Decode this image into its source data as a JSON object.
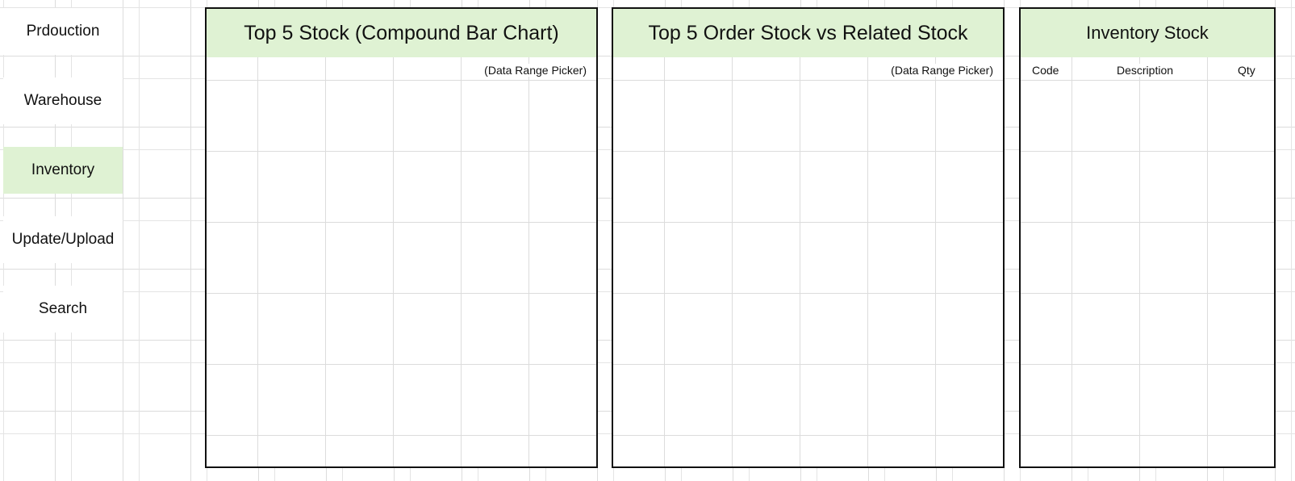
{
  "nav": {
    "items": [
      {
        "label": "Prdouction",
        "active": false
      },
      {
        "label": "Warehouse",
        "active": false
      },
      {
        "label": "Inventory",
        "active": true
      },
      {
        "label": "Update/Upload",
        "active": false
      },
      {
        "label": "Search",
        "active": false
      }
    ]
  },
  "panels": {
    "top_stock": {
      "title": "Top 5 Stock (Compound Bar Chart)",
      "range_picker": "(Data Range Picker)"
    },
    "order_vs_related": {
      "title": "Top 5 Order Stock vs Related Stock",
      "range_picker": "(Data Range Picker)"
    },
    "inventory_stock": {
      "title": "Inventory Stock",
      "columns": [
        "Code",
        "Description",
        "Qty"
      ]
    }
  },
  "colors": {
    "header_green": "#dff2d3",
    "border": "#111111",
    "gridline": "#dcdcdc"
  }
}
